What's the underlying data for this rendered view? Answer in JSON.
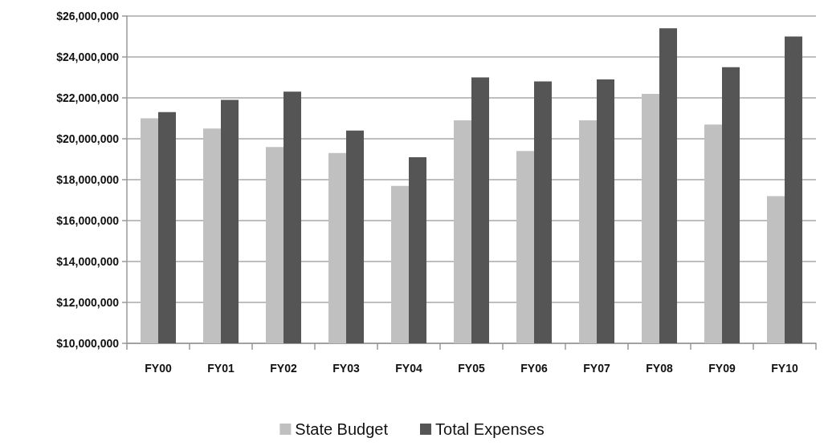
{
  "chart_data": {
    "type": "bar",
    "categories": [
      "FY00",
      "FY01",
      "FY02",
      "FY03",
      "FY04",
      "FY05",
      "FY06",
      "FY07",
      "FY08",
      "FY09",
      "FY10"
    ],
    "series": [
      {
        "name": "State Budget",
        "color": "#c0c0c0",
        "values": [
          21000000,
          20500000,
          19600000,
          19300000,
          17700000,
          20900000,
          19400000,
          20900000,
          22200000,
          20700000,
          17200000
        ]
      },
      {
        "name": "Total Expenses",
        "color": "#555555",
        "values": [
          21300000,
          21900000,
          22300000,
          20400000,
          19100000,
          23000000,
          22800000,
          22900000,
          25400000,
          23500000,
          25000000
        ]
      }
    ],
    "ylim": [
      10000000,
      26000000
    ],
    "yticks": [
      {
        "value": 10000000,
        "label": "$10,000,000"
      },
      {
        "value": 12000000,
        "label": "$12,000,000"
      },
      {
        "value": 14000000,
        "label": "$14,000,000"
      },
      {
        "value": 16000000,
        "label": "$16,000,000"
      },
      {
        "value": 18000000,
        "label": "$18,000,000"
      },
      {
        "value": 20000000,
        "label": "$20,000,000"
      },
      {
        "value": 22000000,
        "label": "$22,000,000"
      },
      {
        "value": 24000000,
        "label": "$24,000,000"
      },
      {
        "value": 26000000,
        "label": "$26,000,000"
      }
    ],
    "grid": "y",
    "legend": "bottom"
  }
}
